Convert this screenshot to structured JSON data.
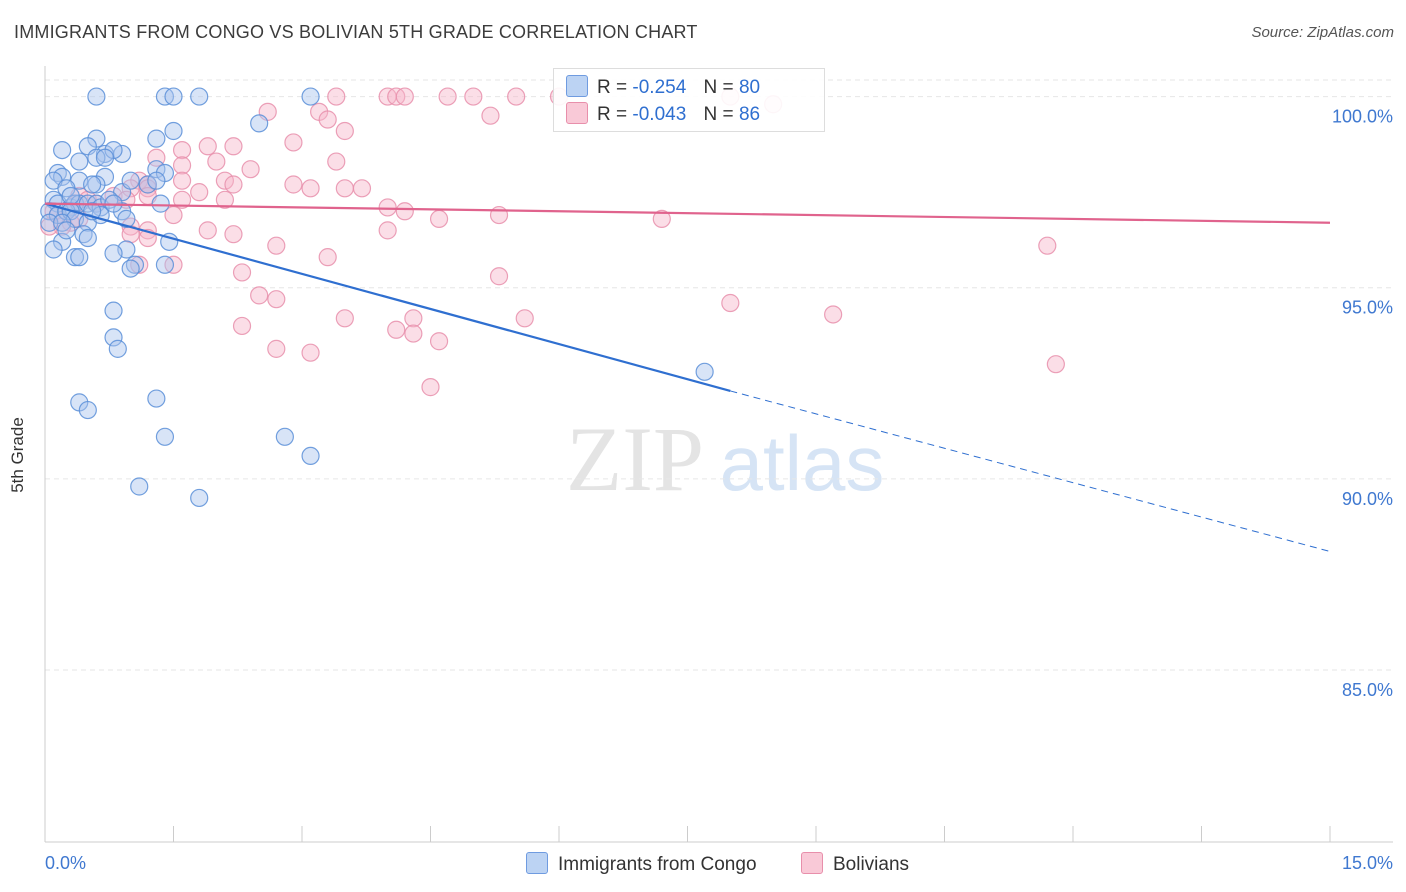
{
  "title": "IMMIGRANTS FROM CONGO VS BOLIVIAN 5TH GRADE CORRELATION CHART",
  "source": "Source: ZipAtlas.com",
  "watermark": {
    "zip": "ZIP",
    "atlas": "atlas"
  },
  "legend": {
    "series": [
      {
        "r_label": "R =",
        "r_value": "-0.254",
        "n_label": "N =",
        "n_value": "80"
      },
      {
        "r_label": "R =",
        "r_value": "-0.043",
        "n_label": "N =",
        "n_value": "86"
      }
    ]
  },
  "colors": {
    "blue_fill": "#a9c4ee",
    "blue_stroke": "#5b8fd8",
    "blue_line": "#2f6fd0",
    "pink_fill": "#f6b6ca",
    "pink_stroke": "#e88fab",
    "pink_line": "#e0638d",
    "tick_text": "#3f78d0"
  },
  "chart_data": {
    "type": "scatter",
    "title": "IMMIGRANTS FROM CONGO VS BOLIVIAN 5TH GRADE CORRELATION CHART",
    "xlabel": "",
    "ylabel": "5th Grade",
    "xlim": [
      0,
      15
    ],
    "ylim": [
      80.5,
      100.8
    ],
    "x_tick_labels": [
      "0.0%",
      "15.0%"
    ],
    "y_ticks": [
      85,
      90,
      95,
      100
    ],
    "y_tick_labels": [
      "85.0%",
      "90.0%",
      "95.0%",
      "100.0%"
    ],
    "grid": true,
    "series": [
      {
        "name": "Immigrants from Congo",
        "trend": {
          "x0": 0,
          "y0": 97.2,
          "x1": 8.0,
          "y1": 92.3,
          "dash_to_x": 15.0,
          "dash_to_y": 88.1
        },
        "points": [
          [
            0.6,
            100
          ],
          [
            1.4,
            100
          ],
          [
            1.5,
            100
          ],
          [
            1.8,
            100
          ],
          [
            3.1,
            100
          ],
          [
            2.5,
            99.3
          ],
          [
            1.5,
            99.1
          ],
          [
            0.6,
            98.9
          ],
          [
            1.3,
            98.9
          ],
          [
            0.2,
            98.6
          ],
          [
            0.5,
            98.7
          ],
          [
            0.7,
            98.5
          ],
          [
            0.9,
            98.5
          ],
          [
            0.8,
            98.6
          ],
          [
            0.6,
            98.4
          ],
          [
            0.4,
            98.3
          ],
          [
            1.3,
            98.1
          ],
          [
            1.4,
            98.0
          ],
          [
            0.15,
            98.0
          ],
          [
            0.2,
            97.9
          ],
          [
            0.7,
            97.9
          ],
          [
            0.1,
            97.8
          ],
          [
            0.4,
            97.8
          ],
          [
            0.6,
            97.7
          ],
          [
            0.55,
            97.7
          ],
          [
            0.25,
            97.6
          ],
          [
            0.9,
            97.5
          ],
          [
            1.2,
            97.7
          ],
          [
            0.1,
            97.3
          ],
          [
            0.15,
            97.2
          ],
          [
            0.3,
            97.1
          ],
          [
            0.35,
            97.2
          ],
          [
            0.4,
            97.2
          ],
          [
            0.5,
            97.2
          ],
          [
            0.6,
            97.2
          ],
          [
            0.65,
            97.1
          ],
          [
            0.75,
            97.3
          ],
          [
            0.05,
            97.0
          ],
          [
            0.15,
            96.9
          ],
          [
            0.25,
            97.0
          ],
          [
            0.3,
            97.0
          ],
          [
            0.35,
            96.8
          ],
          [
            0.5,
            96.7
          ],
          [
            0.05,
            96.7
          ],
          [
            0.2,
            96.7
          ],
          [
            0.9,
            97.0
          ],
          [
            1.35,
            97.2
          ],
          [
            0.95,
            96.8
          ],
          [
            0.45,
            96.4
          ],
          [
            0.5,
            96.3
          ],
          [
            0.2,
            96.2
          ],
          [
            0.1,
            96.0
          ],
          [
            0.95,
            96.0
          ],
          [
            0.8,
            95.9
          ],
          [
            0.35,
            95.8
          ],
          [
            0.4,
            95.8
          ],
          [
            1.05,
            95.6
          ],
          [
            1.0,
            95.5
          ],
          [
            1.4,
            95.6
          ],
          [
            1.45,
            96.2
          ],
          [
            0.8,
            94.4
          ],
          [
            0.8,
            93.7
          ],
          [
            0.85,
            93.4
          ],
          [
            1.3,
            92.1
          ],
          [
            0.4,
            92.0
          ],
          [
            0.5,
            91.8
          ],
          [
            1.4,
            91.1
          ],
          [
            2.8,
            91.1
          ],
          [
            3.1,
            90.6
          ],
          [
            1.1,
            89.8
          ],
          [
            1.8,
            89.5
          ],
          [
            7.7,
            92.8
          ],
          [
            1.0,
            97.8
          ],
          [
            0.7,
            98.4
          ],
          [
            0.3,
            97.4
          ],
          [
            0.65,
            96.9
          ],
          [
            1.3,
            97.8
          ],
          [
            0.8,
            97.2
          ],
          [
            0.55,
            97.0
          ],
          [
            0.25,
            96.5
          ]
        ]
      },
      {
        "name": "Bolivians",
        "trend": {
          "x0": 0,
          "y0": 97.2,
          "x1": 15.0,
          "y1": 96.7
        },
        "points": [
          [
            3.4,
            100
          ],
          [
            4.0,
            100
          ],
          [
            4.1,
            100
          ],
          [
            4.2,
            100
          ],
          [
            4.7,
            100
          ],
          [
            5.0,
            100
          ],
          [
            5.5,
            100
          ],
          [
            6.0,
            100
          ],
          [
            8.0,
            100
          ],
          [
            8.5,
            99.8
          ],
          [
            2.6,
            99.6
          ],
          [
            3.2,
            99.6
          ],
          [
            3.3,
            99.4
          ],
          [
            5.2,
            99.5
          ],
          [
            3.5,
            99.1
          ],
          [
            2.9,
            98.8
          ],
          [
            1.9,
            98.7
          ],
          [
            2.2,
            98.7
          ],
          [
            1.6,
            98.6
          ],
          [
            1.3,
            98.4
          ],
          [
            2.0,
            98.3
          ],
          [
            3.4,
            98.3
          ],
          [
            1.6,
            98.2
          ],
          [
            2.4,
            98.1
          ],
          [
            1.6,
            97.8
          ],
          [
            2.1,
            97.8
          ],
          [
            2.2,
            97.7
          ],
          [
            1.1,
            97.8
          ],
          [
            1.2,
            97.7
          ],
          [
            2.9,
            97.7
          ],
          [
            3.1,
            97.6
          ],
          [
            3.5,
            97.6
          ],
          [
            3.7,
            97.6
          ],
          [
            1.0,
            97.6
          ],
          [
            1.2,
            97.6
          ],
          [
            1.8,
            97.5
          ],
          [
            1.2,
            97.4
          ],
          [
            1.6,
            97.3
          ],
          [
            2.1,
            97.3
          ],
          [
            0.8,
            97.4
          ],
          [
            0.95,
            97.3
          ],
          [
            0.4,
            97.4
          ],
          [
            0.5,
            97.3
          ],
          [
            0.6,
            97.2
          ],
          [
            4.0,
            97.1
          ],
          [
            4.2,
            97.0
          ],
          [
            5.3,
            96.9
          ],
          [
            7.2,
            96.8
          ],
          [
            1.5,
            96.9
          ],
          [
            0.1,
            97.0
          ],
          [
            0.15,
            96.9
          ],
          [
            0.4,
            96.8
          ],
          [
            0.3,
            96.7
          ],
          [
            0.2,
            96.6
          ],
          [
            0.05,
            96.6
          ],
          [
            1.0,
            96.6
          ],
          [
            1.2,
            96.5
          ],
          [
            1.9,
            96.5
          ],
          [
            2.2,
            96.4
          ],
          [
            4.0,
            96.5
          ],
          [
            1.0,
            96.4
          ],
          [
            1.2,
            96.3
          ],
          [
            4.6,
            96.8
          ],
          [
            2.7,
            96.1
          ],
          [
            3.3,
            95.8
          ],
          [
            1.5,
            95.6
          ],
          [
            1.1,
            95.6
          ],
          [
            2.3,
            95.4
          ],
          [
            5.3,
            95.3
          ],
          [
            2.5,
            94.8
          ],
          [
            2.7,
            94.7
          ],
          [
            8.0,
            94.6
          ],
          [
            9.2,
            94.3
          ],
          [
            3.5,
            94.2
          ],
          [
            4.3,
            94.2
          ],
          [
            5.6,
            94.2
          ],
          [
            2.3,
            94.0
          ],
          [
            4.1,
            93.9
          ],
          [
            4.3,
            93.8
          ],
          [
            4.6,
            93.6
          ],
          [
            2.7,
            93.4
          ],
          [
            3.1,
            93.3
          ],
          [
            4.5,
            92.4
          ],
          [
            11.8,
            93.0
          ],
          [
            11.7,
            96.1
          ],
          [
            0.35,
            97.2
          ]
        ]
      }
    ],
    "bottom_legend": [
      "Immigrants from Congo",
      "Bolivians"
    ]
  }
}
